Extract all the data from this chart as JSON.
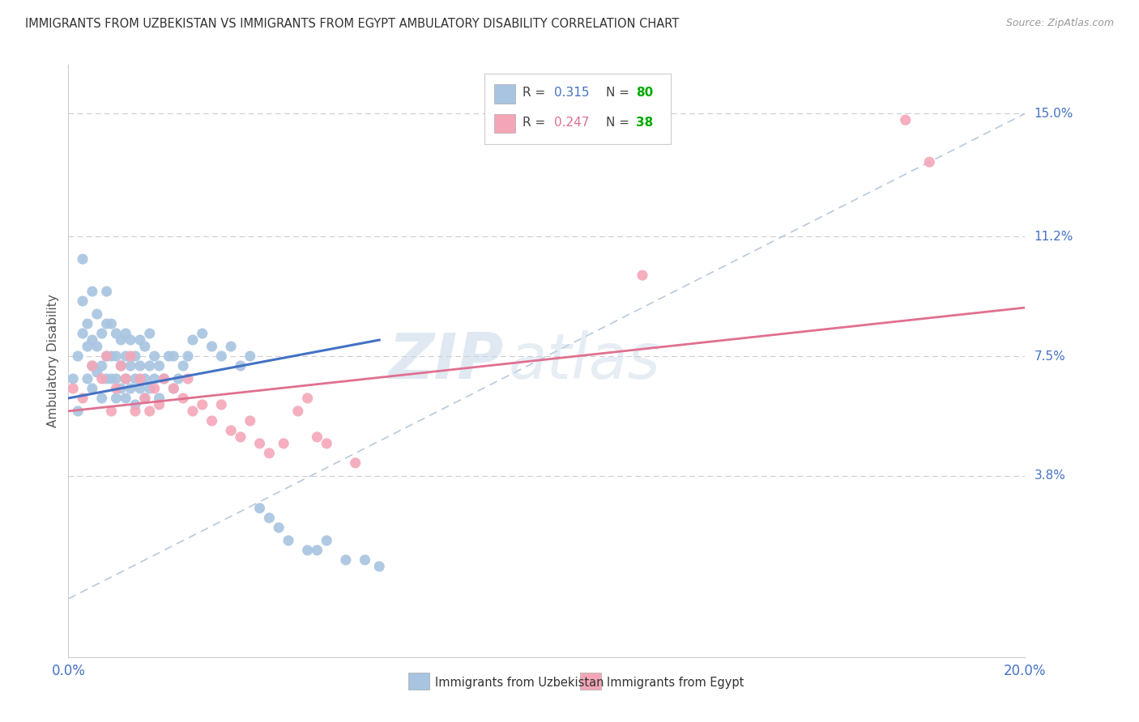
{
  "title": "IMMIGRANTS FROM UZBEKISTAN VS IMMIGRANTS FROM EGYPT AMBULATORY DISABILITY CORRELATION CHART",
  "source": "Source: ZipAtlas.com",
  "ylabel": "Ambulatory Disability",
  "ytick_labels": [
    "15.0%",
    "11.2%",
    "7.5%",
    "3.8%"
  ],
  "ytick_values": [
    0.15,
    0.112,
    0.075,
    0.038
  ],
  "xlim": [
    0.0,
    0.2
  ],
  "ylim": [
    -0.018,
    0.165
  ],
  "color_uzbekistan": "#a8c4e0",
  "color_egypt": "#f4a6b8",
  "color_uzbekistan_line": "#4472c4",
  "color_egypt_line": "#e07090",
  "color_dashed_line": "#b0c4d8",
  "color_axis_labels": "#4472c4",
  "color_green": "#00aa00",
  "watermark_zip": "ZIP",
  "watermark_atlas": "atlas",
  "uzbekistan_x": [
    0.001,
    0.002,
    0.002,
    0.003,
    0.003,
    0.003,
    0.004,
    0.004,
    0.004,
    0.005,
    0.005,
    0.005,
    0.005,
    0.006,
    0.006,
    0.006,
    0.007,
    0.007,
    0.007,
    0.008,
    0.008,
    0.008,
    0.008,
    0.009,
    0.009,
    0.009,
    0.01,
    0.01,
    0.01,
    0.01,
    0.011,
    0.011,
    0.011,
    0.012,
    0.012,
    0.012,
    0.012,
    0.013,
    0.013,
    0.013,
    0.014,
    0.014,
    0.014,
    0.015,
    0.015,
    0.015,
    0.016,
    0.016,
    0.016,
    0.017,
    0.017,
    0.017,
    0.018,
    0.018,
    0.019,
    0.019,
    0.02,
    0.021,
    0.022,
    0.022,
    0.023,
    0.024,
    0.025,
    0.026,
    0.028,
    0.03,
    0.032,
    0.034,
    0.036,
    0.038,
    0.04,
    0.042,
    0.044,
    0.046,
    0.05,
    0.052,
    0.054,
    0.058,
    0.062,
    0.065
  ],
  "uzbekistan_y": [
    0.068,
    0.075,
    0.058,
    0.082,
    0.092,
    0.105,
    0.068,
    0.078,
    0.085,
    0.065,
    0.072,
    0.08,
    0.095,
    0.07,
    0.078,
    0.088,
    0.062,
    0.072,
    0.082,
    0.068,
    0.075,
    0.085,
    0.095,
    0.068,
    0.075,
    0.085,
    0.062,
    0.068,
    0.075,
    0.082,
    0.065,
    0.072,
    0.08,
    0.062,
    0.068,
    0.075,
    0.082,
    0.065,
    0.072,
    0.08,
    0.06,
    0.068,
    0.075,
    0.065,
    0.072,
    0.08,
    0.062,
    0.068,
    0.078,
    0.065,
    0.072,
    0.082,
    0.068,
    0.075,
    0.062,
    0.072,
    0.068,
    0.075,
    0.065,
    0.075,
    0.068,
    0.072,
    0.075,
    0.08,
    0.082,
    0.078,
    0.075,
    0.078,
    0.072,
    0.075,
    0.028,
    0.025,
    0.022,
    0.018,
    0.015,
    0.015,
    0.018,
    0.012,
    0.012,
    0.01
  ],
  "egypt_x": [
    0.001,
    0.003,
    0.005,
    0.007,
    0.008,
    0.009,
    0.01,
    0.011,
    0.012,
    0.013,
    0.014,
    0.015,
    0.016,
    0.017,
    0.018,
    0.019,
    0.02,
    0.022,
    0.024,
    0.025,
    0.026,
    0.028,
    0.03,
    0.032,
    0.034,
    0.036,
    0.038,
    0.04,
    0.042,
    0.045,
    0.048,
    0.05,
    0.052,
    0.054,
    0.06,
    0.12,
    0.175,
    0.18
  ],
  "egypt_y": [
    0.065,
    0.062,
    0.072,
    0.068,
    0.075,
    0.058,
    0.065,
    0.072,
    0.068,
    0.075,
    0.058,
    0.068,
    0.062,
    0.058,
    0.065,
    0.06,
    0.068,
    0.065,
    0.062,
    0.068,
    0.058,
    0.06,
    0.055,
    0.06,
    0.052,
    0.05,
    0.055,
    0.048,
    0.045,
    0.048,
    0.058,
    0.062,
    0.05,
    0.048,
    0.042,
    0.1,
    0.148,
    0.135
  ],
  "uzb_line_x": [
    0.0,
    0.065
  ],
  "uzb_line_y_start": 0.062,
  "uzb_line_y_end": 0.08,
  "egy_line_x": [
    0.0,
    0.2
  ],
  "egy_line_y_start": 0.058,
  "egy_line_y_end": 0.09
}
